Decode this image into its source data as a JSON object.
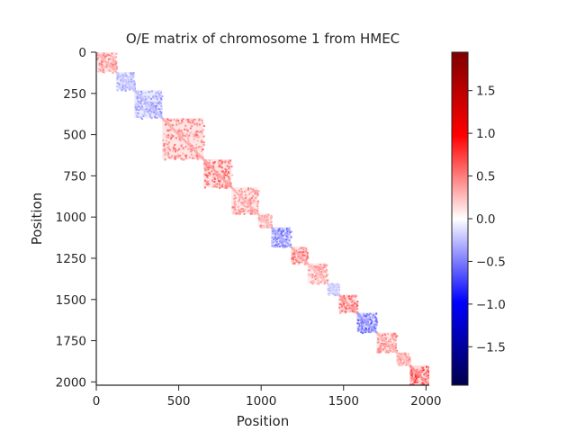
{
  "chart_data": {
    "type": "heatmap",
    "title": "O/E matrix of chromosome 1 from HMEC",
    "xlabel": "Position",
    "ylabel": "Position",
    "xlim": [
      0,
      2020
    ],
    "ylim": [
      2020,
      0
    ],
    "x_ticks": [
      "0",
      "500",
      "1000",
      "1500",
      "2000"
    ],
    "y_ticks": [
      "0",
      "250",
      "500",
      "750",
      "1000",
      "1250",
      "1500",
      "1750",
      "2000"
    ],
    "colorbar": {
      "colormap": "seismic",
      "vmin": -1.95,
      "vmax": 1.95,
      "ticks": [
        "−1.5",
        "−1.0",
        "−0.5",
        "0.0",
        "0.5",
        "1.0",
        "1.5"
      ],
      "colors": [
        "#00004c",
        "#0000ff",
        "#ffffff",
        "#ff0000",
        "#800000"
      ]
    },
    "domains": [
      {
        "start": 0,
        "end": 120,
        "value": 0.35
      },
      {
        "start": 120,
        "end": 230,
        "value": -0.25
      },
      {
        "start": 230,
        "end": 400,
        "value": -0.3
      },
      {
        "start": 400,
        "end": 650,
        "value": 0.4
      },
      {
        "start": 650,
        "end": 820,
        "value": 0.45
      },
      {
        "start": 820,
        "end": 980,
        "value": 0.35
      },
      {
        "start": 980,
        "end": 1060,
        "value": 0.3
      },
      {
        "start": 1060,
        "end": 1180,
        "value": -0.4
      },
      {
        "start": 1180,
        "end": 1280,
        "value": 0.4
      },
      {
        "start": 1280,
        "end": 1400,
        "value": 0.3
      },
      {
        "start": 1400,
        "end": 1470,
        "value": -0.2
      },
      {
        "start": 1470,
        "end": 1580,
        "value": 0.45
      },
      {
        "start": 1580,
        "end": 1700,
        "value": -0.45
      },
      {
        "start": 1700,
        "end": 1820,
        "value": 0.35
      },
      {
        "start": 1820,
        "end": 1900,
        "value": 0.3
      },
      {
        "start": 1900,
        "end": 2020,
        "value": 0.55
      }
    ]
  }
}
